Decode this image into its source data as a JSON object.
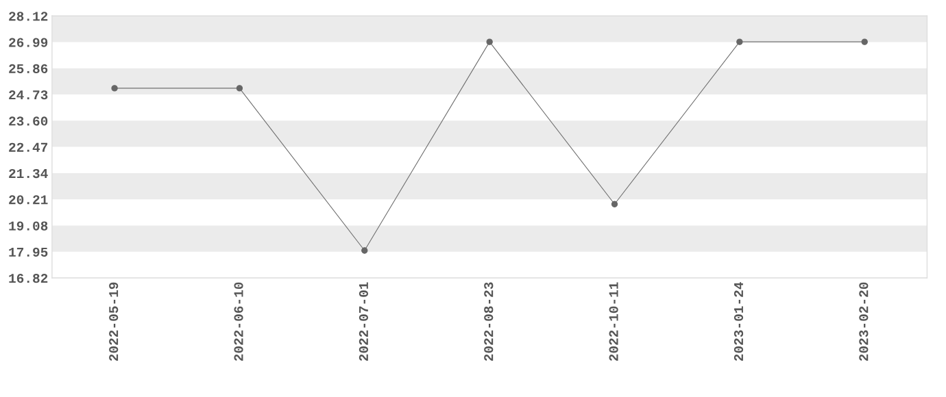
{
  "chart_data": {
    "type": "line",
    "categories": [
      "2022-05-19",
      "2022-06-10",
      "2022-07-01",
      "2022-08-23",
      "2022-10-11",
      "2023-01-24",
      "2023-02-20"
    ],
    "series": [
      {
        "color": "#707070",
        "values": [
          25,
          25,
          18,
          27,
          20,
          27,
          27
        ]
      }
    ],
    "ylim": [
      16.82,
      28.12
    ],
    "yticks": [
      {
        "value": 16.82,
        "label": "16.82"
      },
      {
        "value": 17.95,
        "label": "17.95"
      },
      {
        "value": 19.08,
        "label": "19.08"
      },
      {
        "value": 20.21,
        "label": "20.21"
      },
      {
        "value": 21.34,
        "label": "21.34"
      },
      {
        "value": 22.47,
        "label": "22.47"
      },
      {
        "value": 23.6,
        "label": "23.60"
      },
      {
        "value": 24.73,
        "label": "24.73"
      },
      {
        "value": 25.86,
        "label": "25.86"
      },
      {
        "value": 26.99,
        "label": "26.99"
      },
      {
        "value": 28.12,
        "label": "28.12"
      }
    ],
    "bands": [
      {
        "axis": "y",
        "from": 17.95,
        "to": 19.08,
        "color": "#ebebeb"
      },
      {
        "axis": "y",
        "from": 20.21,
        "to": 21.34,
        "color": "#ebebeb"
      },
      {
        "axis": "y",
        "from": 22.47,
        "to": 23.6,
        "color": "#ebebeb"
      },
      {
        "axis": "y",
        "from": 24.73,
        "to": 25.86,
        "color": "#ebebeb"
      },
      {
        "axis": "y",
        "from": 26.99,
        "to": 28.12,
        "color": "#ebebeb"
      }
    ],
    "marker": "circle",
    "line_style": "solid",
    "legend": false
  }
}
